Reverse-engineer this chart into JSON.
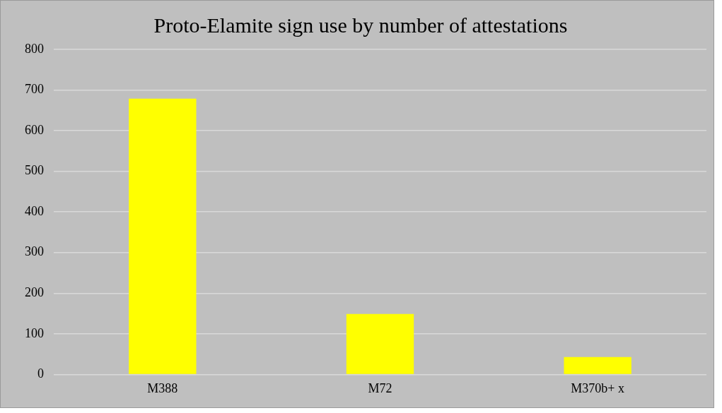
{
  "chart_data": {
    "type": "bar",
    "title": "Proto-Elamite sign use by number of attestations",
    "categories": [
      "M388",
      "M72",
      "M370b+ x"
    ],
    "values": [
      679,
      149,
      43
    ],
    "color": "#ffff00",
    "ylim": [
      0,
      800
    ],
    "yticks": [
      0,
      100,
      200,
      300,
      400,
      500,
      600,
      700,
      800
    ],
    "grid": "y"
  }
}
